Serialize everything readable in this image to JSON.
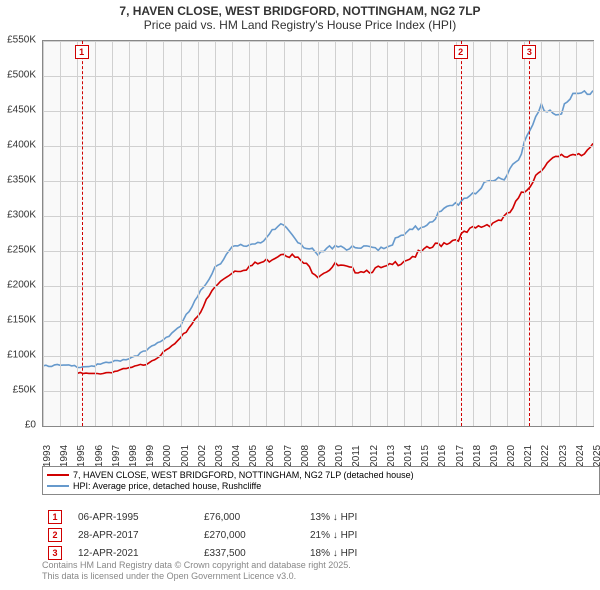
{
  "title": {
    "line1": "7, HAVEN CLOSE, WEST BRIDGFORD, NOTTINGHAM, NG2 7LP",
    "line2": "Price paid vs. HM Land Registry's House Price Index (HPI)"
  },
  "chart": {
    "type": "line",
    "background_color": "#f9f9f9",
    "grid_color": "#d0d0d0",
    "border_color": "#888888",
    "ylim": [
      0,
      550000
    ],
    "ytick_step": 50000,
    "y_labels": [
      "£0",
      "£50K",
      "£100K",
      "£150K",
      "£200K",
      "£250K",
      "£300K",
      "£350K",
      "£400K",
      "£450K",
      "£500K",
      "£550K"
    ],
    "x_years": [
      1993,
      1994,
      1995,
      1996,
      1997,
      1998,
      1999,
      2000,
      2001,
      2002,
      2003,
      2004,
      2005,
      2006,
      2007,
      2008,
      2009,
      2010,
      2011,
      2012,
      2013,
      2014,
      2015,
      2016,
      2017,
      2018,
      2019,
      2020,
      2021,
      2022,
      2023,
      2024,
      2025
    ],
    "series": [
      {
        "name": "price_paid",
        "color": "#d00000",
        "line_width": 1.6,
        "values_by_year": {
          "1995": 76000,
          "1996": 75000,
          "1997": 78000,
          "1998": 83000,
          "1999": 90000,
          "2000": 105000,
          "2001": 125000,
          "2002": 160000,
          "2003": 200000,
          "2004": 223000,
          "2005": 230000,
          "2006": 238000,
          "2007": 252000,
          "2008": 238000,
          "2009": 218000,
          "2010": 232000,
          "2011": 225000,
          "2012": 225000,
          "2013": 228000,
          "2014": 240000,
          "2015": 250000,
          "2016": 262000,
          "2017": 270000,
          "2018": 283000,
          "2019": 293000,
          "2020": 302000,
          "2021": 337500,
          "2022": 375000,
          "2023": 385000,
          "2024": 395000,
          "2025": 400000
        }
      },
      {
        "name": "hpi",
        "color": "#6699cc",
        "line_width": 1.6,
        "values_by_year": {
          "1993": 88000,
          "1994": 87000,
          "1995": 86000,
          "1996": 87000,
          "1997": 92000,
          "1998": 98000,
          "1999": 108000,
          "2000": 125000,
          "2001": 145000,
          "2002": 185000,
          "2003": 230000,
          "2004": 255000,
          "2005": 262000,
          "2006": 272000,
          "2007": 290000,
          "2008": 265000,
          "2009": 245000,
          "2010": 263000,
          "2011": 255000,
          "2012": 256000,
          "2013": 260000,
          "2014": 275000,
          "2015": 288000,
          "2016": 305000,
          "2017": 320000,
          "2018": 338000,
          "2019": 348000,
          "2020": 365000,
          "2021": 405000,
          "2022": 460000,
          "2023": 455000,
          "2024": 475000,
          "2025": 485000
        }
      }
    ],
    "markers": [
      {
        "num": "1",
        "year": 1995.25
      },
      {
        "num": "2",
        "year": 2017.3
      },
      {
        "num": "3",
        "year": 2021.3
      }
    ],
    "marker_color": "#d00000"
  },
  "legend": {
    "items": [
      {
        "color": "#d00000",
        "label": "7, HAVEN CLOSE, WEST BRIDGFORD, NOTTINGHAM, NG2 7LP (detached house)"
      },
      {
        "color": "#6699cc",
        "label": "HPI: Average price, detached house, Rushcliffe"
      }
    ]
  },
  "datapoints": [
    {
      "num": "1",
      "date": "06-APR-1995",
      "price": "£76,000",
      "diff": "13% ↓ HPI"
    },
    {
      "num": "2",
      "date": "28-APR-2017",
      "price": "£270,000",
      "diff": "21% ↓ HPI"
    },
    {
      "num": "3",
      "date": "12-APR-2021",
      "price": "£337,500",
      "diff": "18% ↓ HPI"
    }
  ],
  "footer": {
    "line1": "Contains HM Land Registry data © Crown copyright and database right 2025.",
    "line2": "This data is licensed under the Open Government Licence v3.0."
  }
}
